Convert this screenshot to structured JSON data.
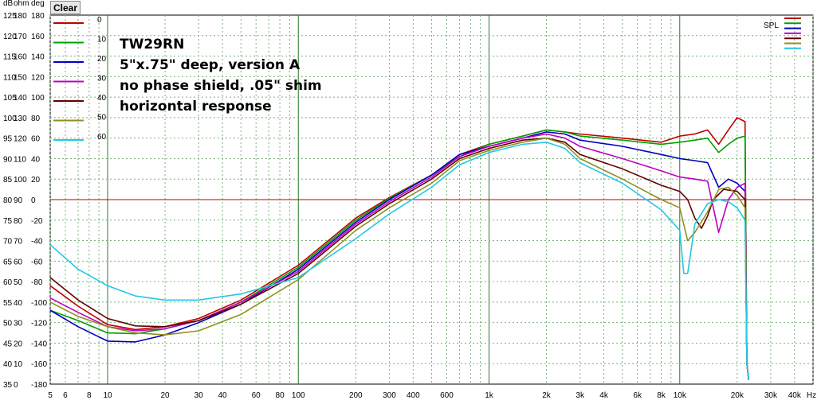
{
  "clear_button": "Clear",
  "annotations": [
    "TW29RN",
    "5\"x.75\" deep, version A",
    "no phase shield, .05\" shim",
    "horizontal response"
  ],
  "chart_data": {
    "type": "line",
    "xscale": "log",
    "xlim": [
      5,
      50000
    ],
    "x_ticks": [
      {
        "v": 5,
        "t": "5"
      },
      {
        "v": 6,
        "t": "6"
      },
      {
        "v": 8,
        "t": "8"
      },
      {
        "v": 10,
        "t": "10"
      },
      {
        "v": 20,
        "t": "20"
      },
      {
        "v": 30,
        "t": "30"
      },
      {
        "v": 40,
        "t": "40"
      },
      {
        "v": 60,
        "t": "60"
      },
      {
        "v": 80,
        "t": "80"
      },
      {
        "v": 100,
        "t": "100"
      },
      {
        "v": 200,
        "t": "200"
      },
      {
        "v": 300,
        "t": "300"
      },
      {
        "v": 400,
        "t": "400"
      },
      {
        "v": 600,
        "t": "600"
      },
      {
        "v": 1000,
        "t": "1k"
      },
      {
        "v": 2000,
        "t": "2k"
      },
      {
        "v": 3000,
        "t": "3k"
      },
      {
        "v": 4000,
        "t": "4k"
      },
      {
        "v": 6000,
        "t": "6k"
      },
      {
        "v": 8000,
        "t": "8k"
      },
      {
        "v": 10000,
        "t": "10k"
      },
      {
        "v": 20000,
        "t": "20k"
      },
      {
        "v": 30000,
        "t": "30k"
      },
      {
        "v": 40000,
        "t": "40k"
      }
    ],
    "x_unit": "Hz",
    "y_header": [
      "dB",
      "ohm",
      "deg"
    ],
    "ylim_db": [
      35,
      125
    ],
    "y_rows": [
      [
        "125",
        "180",
        "180"
      ],
      [
        "120",
        "170",
        "160"
      ],
      [
        "115",
        "160",
        "140"
      ],
      [
        "110",
        "150",
        "120"
      ],
      [
        "105",
        "140",
        "100"
      ],
      [
        "100",
        "130",
        "80"
      ],
      [
        "95",
        "120",
        "60"
      ],
      [
        "90",
        "110",
        "40"
      ],
      [
        "85",
        "100",
        "20"
      ],
      [
        "80",
        "90",
        "0"
      ],
      [
        "75",
        "80",
        "-20"
      ],
      [
        "70",
        "70",
        "-40"
      ],
      [
        "65",
        "60",
        "-60"
      ],
      [
        "60",
        "50",
        "-80"
      ],
      [
        "55",
        "40",
        "-100"
      ],
      [
        "50",
        "30",
        "-120"
      ],
      [
        "45",
        "20",
        "-140"
      ],
      [
        "40",
        "10",
        "-160"
      ],
      [
        "35",
        "0",
        "-180"
      ]
    ],
    "reference_line_db": 80,
    "legend_label": "SPL",
    "series": [
      {
        "name": "0",
        "color": "#c00000",
        "points": [
          [
            5,
            59
          ],
          [
            7,
            54
          ],
          [
            10,
            49.5
          ],
          [
            14,
            48.3
          ],
          [
            20,
            49
          ],
          [
            30,
            51
          ],
          [
            50,
            55.5
          ],
          [
            100,
            64
          ],
          [
            200,
            75.5
          ],
          [
            300,
            80.5
          ],
          [
            500,
            86
          ],
          [
            700,
            91
          ],
          [
            1000,
            93.5
          ],
          [
            1500,
            95.5
          ],
          [
            2000,
            97
          ],
          [
            2500,
            96.5
          ],
          [
            3000,
            96
          ],
          [
            5000,
            95
          ],
          [
            8000,
            94
          ],
          [
            10000,
            95.5
          ],
          [
            12000,
            96
          ],
          [
            14000,
            97
          ],
          [
            16000,
            93.5
          ],
          [
            18000,
            97
          ],
          [
            20000,
            100
          ],
          [
            22000,
            99
          ],
          [
            22500,
            40
          ],
          [
            23000,
            36
          ]
        ]
      },
      {
        "name": "10",
        "color": "#00a000",
        "points": [
          [
            5,
            53
          ],
          [
            7,
            50.5
          ],
          [
            10,
            47.5
          ],
          [
            14,
            47.3
          ],
          [
            20,
            48.5
          ],
          [
            30,
            50.5
          ],
          [
            50,
            55
          ],
          [
            100,
            63.5
          ],
          [
            200,
            75
          ],
          [
            300,
            80.3
          ],
          [
            500,
            86
          ],
          [
            700,
            90.5
          ],
          [
            1000,
            93.5
          ],
          [
            1500,
            95.5
          ],
          [
            2000,
            97
          ],
          [
            2500,
            96.5
          ],
          [
            3000,
            95.5
          ],
          [
            5000,
            94.5
          ],
          [
            8000,
            93.5
          ],
          [
            10000,
            94
          ],
          [
            12000,
            94.5
          ],
          [
            14000,
            95
          ],
          [
            16000,
            91.5
          ],
          [
            18000,
            93.5
          ],
          [
            20000,
            95
          ],
          [
            22000,
            95.5
          ],
          [
            22500,
            40
          ],
          [
            23000,
            36
          ]
        ]
      },
      {
        "name": "20",
        "color": "#0000c0",
        "points": [
          [
            5,
            53
          ],
          [
            7,
            49
          ],
          [
            10,
            45.5
          ],
          [
            14,
            45.3
          ],
          [
            20,
            47
          ],
          [
            30,
            50
          ],
          [
            50,
            54.5
          ],
          [
            100,
            63
          ],
          [
            200,
            74.5
          ],
          [
            300,
            80
          ],
          [
            500,
            86
          ],
          [
            700,
            91
          ],
          [
            1000,
            93
          ],
          [
            1500,
            95
          ],
          [
            2000,
            96.5
          ],
          [
            2500,
            96
          ],
          [
            3000,
            94.5
          ],
          [
            5000,
            93
          ],
          [
            8000,
            91
          ],
          [
            10000,
            90
          ],
          [
            12000,
            89.5
          ],
          [
            14000,
            89
          ],
          [
            16000,
            83
          ],
          [
            18000,
            85
          ],
          [
            20000,
            84
          ],
          [
            22000,
            82
          ],
          [
            22500,
            40
          ],
          [
            23000,
            36
          ]
        ]
      },
      {
        "name": "30",
        "color": "#c000c0",
        "points": [
          [
            5,
            56
          ],
          [
            7,
            52.5
          ],
          [
            10,
            49
          ],
          [
            14,
            48
          ],
          [
            20,
            48.5
          ],
          [
            30,
            50.5
          ],
          [
            50,
            55
          ],
          [
            100,
            62.5
          ],
          [
            200,
            74
          ],
          [
            300,
            79.5
          ],
          [
            500,
            85.5
          ],
          [
            700,
            90.5
          ],
          [
            1000,
            93
          ],
          [
            1500,
            95
          ],
          [
            2000,
            96
          ],
          [
            2500,
            95
          ],
          [
            3000,
            93
          ],
          [
            5000,
            90
          ],
          [
            8000,
            87
          ],
          [
            10000,
            85.5
          ],
          [
            12000,
            85
          ],
          [
            14000,
            84.5
          ],
          [
            16000,
            72
          ],
          [
            18000,
            80
          ],
          [
            20000,
            83
          ],
          [
            22000,
            84
          ],
          [
            22500,
            40
          ],
          [
            23000,
            36
          ]
        ]
      },
      {
        "name": "40",
        "color": "#600000",
        "points": [
          [
            5,
            61
          ],
          [
            7,
            55.5
          ],
          [
            10,
            51
          ],
          [
            14,
            49.2
          ],
          [
            20,
            49
          ],
          [
            30,
            50.5
          ],
          [
            50,
            54.5
          ],
          [
            100,
            62
          ],
          [
            200,
            73.5
          ],
          [
            300,
            79
          ],
          [
            500,
            85
          ],
          [
            700,
            90
          ],
          [
            1000,
            92.5
          ],
          [
            1500,
            94.5
          ],
          [
            2000,
            95
          ],
          [
            2500,
            94
          ],
          [
            3000,
            91
          ],
          [
            5000,
            87.5
          ],
          [
            8000,
            83.5
          ],
          [
            10000,
            82
          ],
          [
            11000,
            80
          ],
          [
            12000,
            75.5
          ],
          [
            13000,
            73
          ],
          [
            14000,
            76
          ],
          [
            15000,
            80
          ],
          [
            17000,
            82.5
          ],
          [
            20000,
            82
          ],
          [
            22000,
            80
          ],
          [
            22500,
            40
          ],
          [
            23000,
            36
          ]
        ]
      },
      {
        "name": "50",
        "color": "#909020",
        "points": [
          [
            5,
            55
          ],
          [
            7,
            51.5
          ],
          [
            10,
            49
          ],
          [
            14,
            47.5
          ],
          [
            20,
            47
          ],
          [
            30,
            48
          ],
          [
            50,
            52
          ],
          [
            100,
            60.5
          ],
          [
            200,
            72.5
          ],
          [
            300,
            78
          ],
          [
            500,
            84
          ],
          [
            700,
            89.5
          ],
          [
            1000,
            92
          ],
          [
            1500,
            94
          ],
          [
            2000,
            95
          ],
          [
            2500,
            93.5
          ],
          [
            3000,
            90
          ],
          [
            5000,
            85
          ],
          [
            8000,
            80
          ],
          [
            10000,
            78
          ],
          [
            11000,
            70
          ],
          [
            12000,
            72
          ],
          [
            14000,
            77
          ],
          [
            16000,
            82.5
          ],
          [
            18000,
            83
          ],
          [
            20000,
            81
          ],
          [
            22000,
            78
          ],
          [
            22500,
            40
          ],
          [
            23000,
            36
          ]
        ]
      },
      {
        "name": "60",
        "color": "#20c8e8",
        "points": [
          [
            5,
            69
          ],
          [
            7,
            63
          ],
          [
            10,
            59
          ],
          [
            14,
            56.5
          ],
          [
            20,
            55.5
          ],
          [
            30,
            55.5
          ],
          [
            50,
            57
          ],
          [
            100,
            61
          ],
          [
            200,
            70.5
          ],
          [
            300,
            76.5
          ],
          [
            500,
            83
          ],
          [
            700,
            88.5
          ],
          [
            1000,
            91.5
          ],
          [
            1500,
            93.5
          ],
          [
            2000,
            94
          ],
          [
            2500,
            92.5
          ],
          [
            3000,
            89
          ],
          [
            5000,
            84
          ],
          [
            8000,
            77.5
          ],
          [
            10000,
            72.5
          ],
          [
            10500,
            62
          ],
          [
            11000,
            62
          ],
          [
            12000,
            74
          ],
          [
            14000,
            79
          ],
          [
            16000,
            80
          ],
          [
            18000,
            79.5
          ],
          [
            20000,
            78
          ],
          [
            22000,
            75
          ],
          [
            22500,
            40
          ],
          [
            23000,
            36
          ]
        ]
      }
    ]
  }
}
